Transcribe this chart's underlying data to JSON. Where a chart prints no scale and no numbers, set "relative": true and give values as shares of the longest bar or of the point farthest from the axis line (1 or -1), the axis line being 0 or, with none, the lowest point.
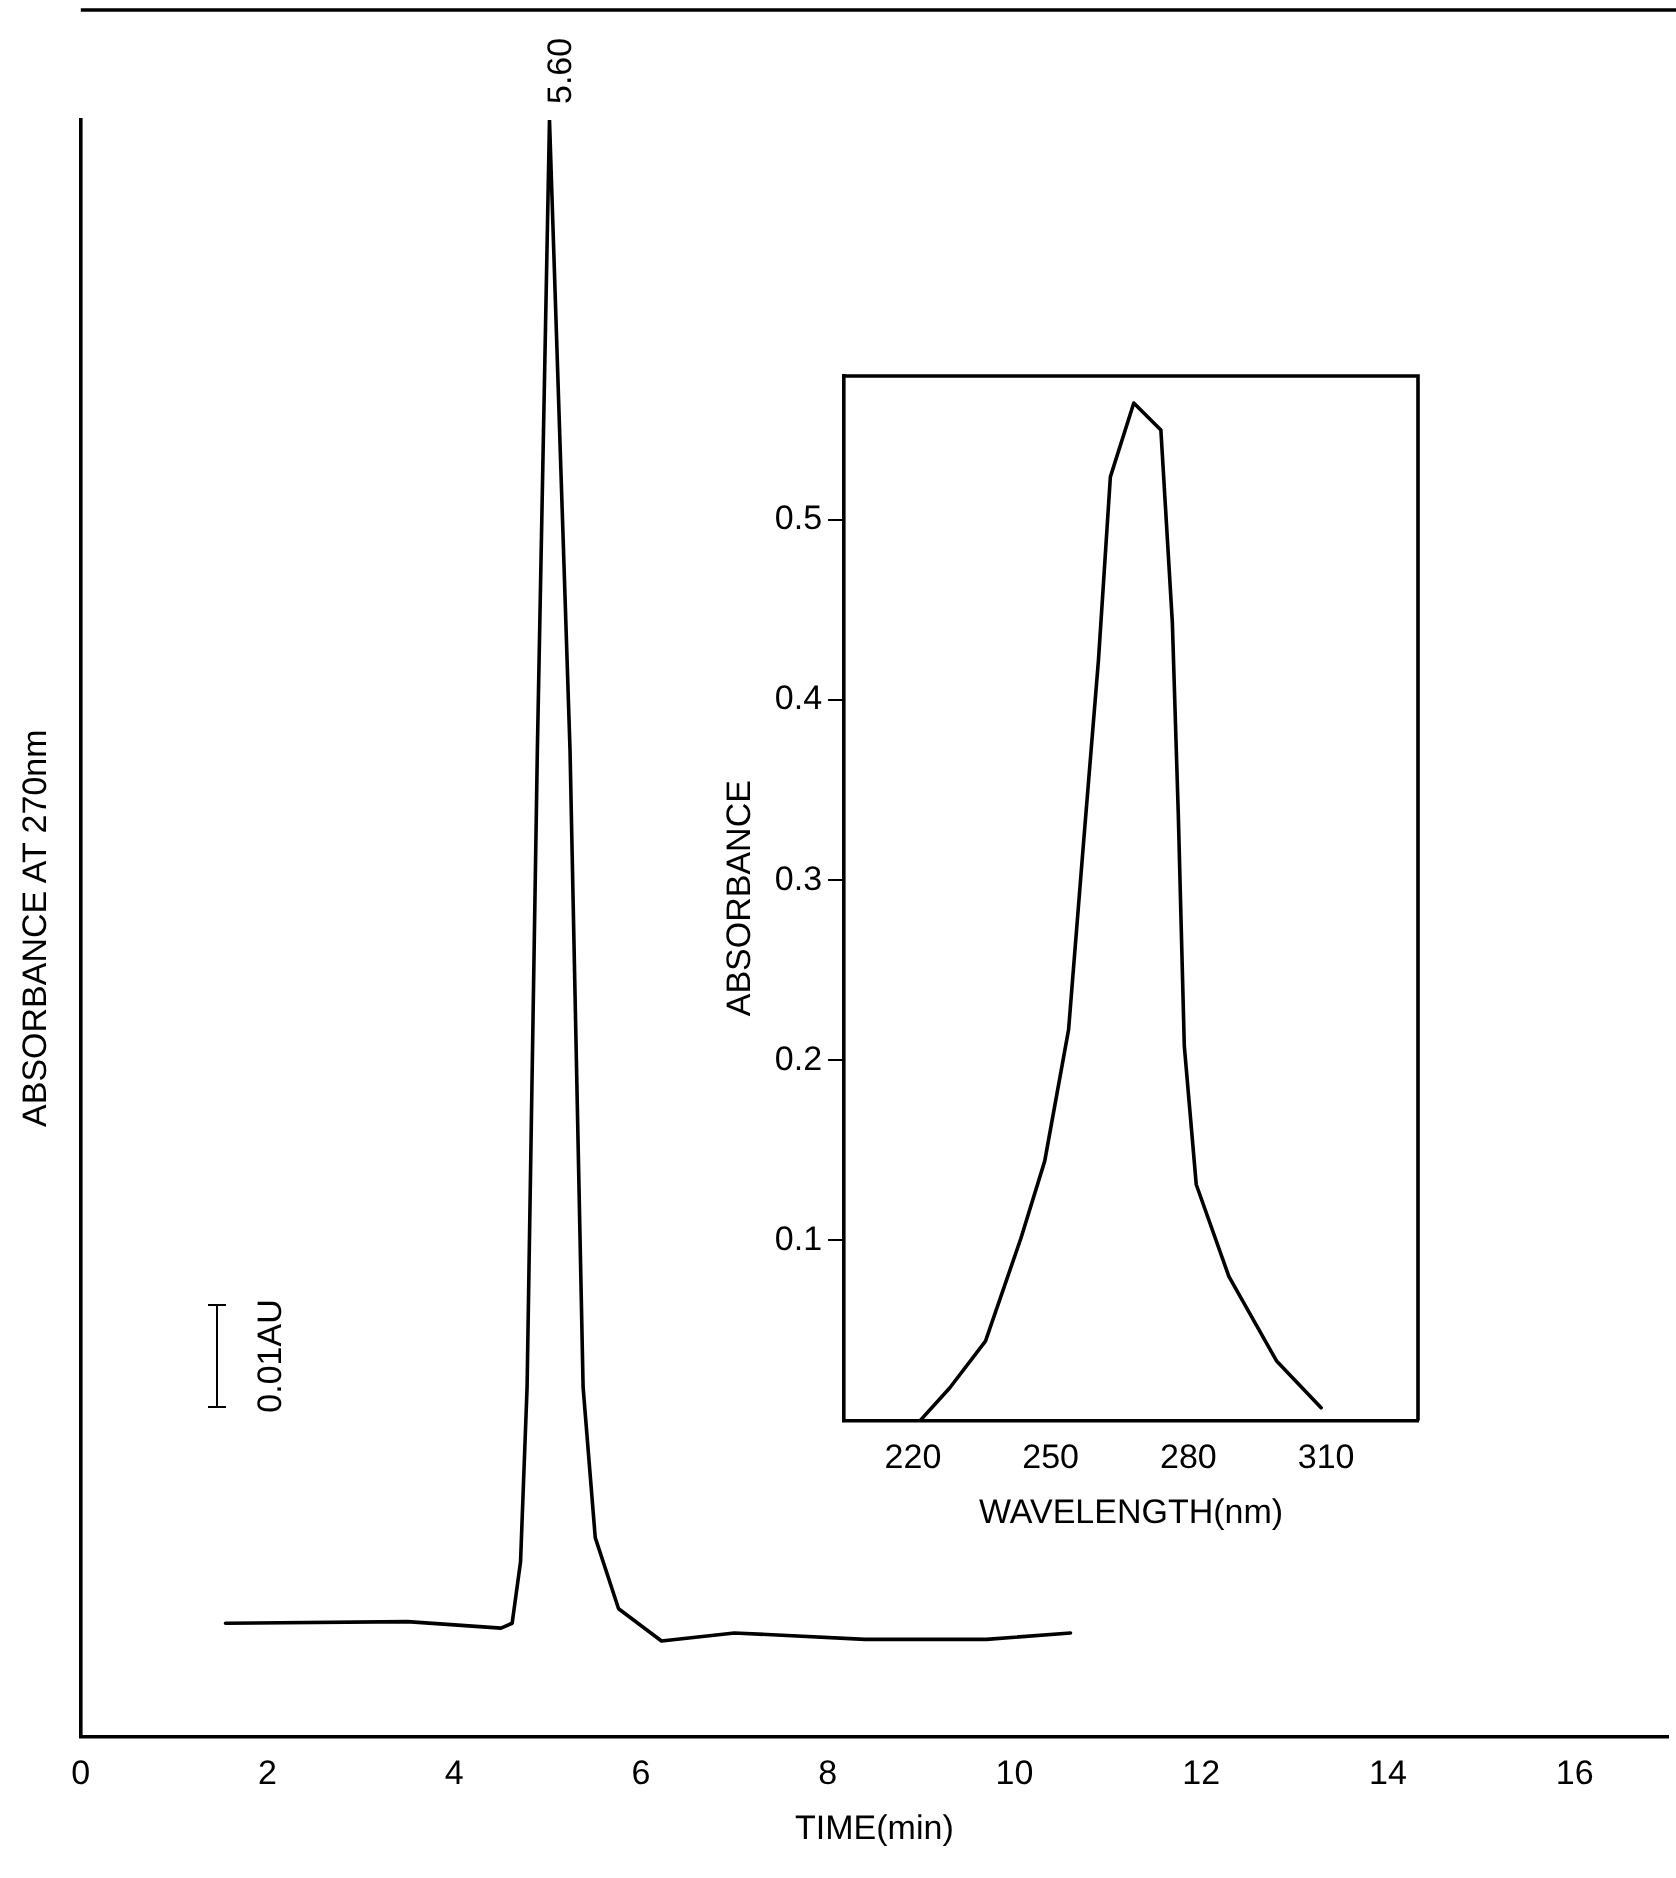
{
  "chart_data": [
    {
      "type": "line",
      "xlabel": "TIME(min)",
      "ylabel": "ABSORBANCE AT 270nm",
      "relative": true,
      "color": "#000000",
      "marker": "none",
      "grid": false,
      "xlim": [
        0,
        17
      ],
      "xticks": [
        0,
        2,
        4,
        6,
        8,
        10,
        12,
        14,
        16
      ],
      "x": [
        1.55,
        3.5,
        4.5,
        4.62,
        4.71,
        4.78,
        4.89,
        5.02,
        5.24,
        5.38,
        5.51,
        5.76,
        6.22,
        7.0,
        8.4,
        9.7,
        10.6
      ],
      "values": [
        0.07,
        0.071,
        0.067,
        0.07,
        0.108,
        0.216,
        0.61,
        1.0,
        0.61,
        0.216,
        0.123,
        0.079,
        0.059,
        0.064,
        0.06,
        0.06,
        0.064
      ],
      "annotations": [
        {
          "text": "5.60",
          "x": 5.02,
          "y": 1
        },
        "0.01AU"
      ]
    },
    {
      "type": "line",
      "xlabel": "WAVELENGTH(nm)",
      "ylabel": "ABSORBANCE",
      "color": "#000000",
      "marker": "none",
      "grid": false,
      "xlim": [
        205,
        330
      ],
      "xticks": [
        220,
        250,
        280,
        310
      ],
      "ylim": [
        0,
        0.58
      ],
      "yticks": [
        0.1,
        0.2,
        0.3,
        0.4,
        0.5
      ],
      "x": [
        221.6,
        228,
        235.8,
        243.5,
        248.7,
        253.9,
        257.1,
        260.4,
        263,
        268.1,
        274,
        276.5,
        277.8,
        279.1,
        281.7,
        288.8,
        299.2,
        308.9
      ],
      "values": [
        0.0,
        0.018,
        0.044,
        0.101,
        0.144,
        0.217,
        0.319,
        0.422,
        0.524,
        0.565,
        0.55,
        0.443,
        0.336,
        0.208,
        0.131,
        0.08,
        0.033,
        0.007
      ]
    }
  ]
}
